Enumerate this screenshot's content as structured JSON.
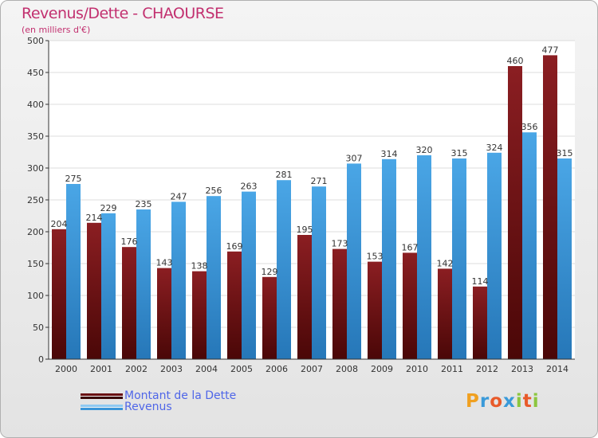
{
  "title": "Revenus/Dette - CHAOURSE",
  "subtitle": "(en milliers d'€)",
  "logo": {
    "text": "Proxiti",
    "letters": [
      {
        "ch": "P",
        "color": "#f0a020"
      },
      {
        "ch": "r",
        "color": "#3a9ad9"
      },
      {
        "ch": "o",
        "color": "#e85a2a"
      },
      {
        "ch": "x",
        "color": "#3a9ad9"
      },
      {
        "ch": "i",
        "color": "#8cc63f"
      },
      {
        "ch": "t",
        "color": "#e85a2a"
      },
      {
        "ch": "i",
        "color": "#8cc63f"
      }
    ]
  },
  "colors": {
    "dette": "#8b1e22",
    "dette_dark": "#4a0707",
    "revenus": "#4aa6e6",
    "revenus_dark": "#2677b8",
    "legend_text": "#4f66e8",
    "title": "#c2306f"
  },
  "chart_data": {
    "type": "bar",
    "categories": [
      "2000",
      "2001",
      "2002",
      "2003",
      "2004",
      "2005",
      "2006",
      "2007",
      "2008",
      "2009",
      "2010",
      "2011",
      "2012",
      "2013",
      "2014"
    ],
    "series": [
      {
        "name": "Montant de la Dette",
        "values": [
          204,
          214,
          176,
          143,
          138,
          169,
          129,
          195,
          173,
          153,
          167,
          142,
          114,
          460,
          477
        ]
      },
      {
        "name": "Revenus",
        "values": [
          275,
          229,
          235,
          247,
          256,
          263,
          281,
          271,
          307,
          314,
          320,
          315,
          324,
          356,
          315
        ]
      }
    ],
    "title": "Revenus/Dette - CHAOURSE",
    "ylabel": "",
    "xlabel": "",
    "ylim": [
      0,
      500
    ],
    "yticks": [
      0,
      50,
      100,
      150,
      200,
      250,
      300,
      350,
      400,
      450,
      500
    ],
    "grid": true,
    "legend_position": "bottom-left"
  }
}
